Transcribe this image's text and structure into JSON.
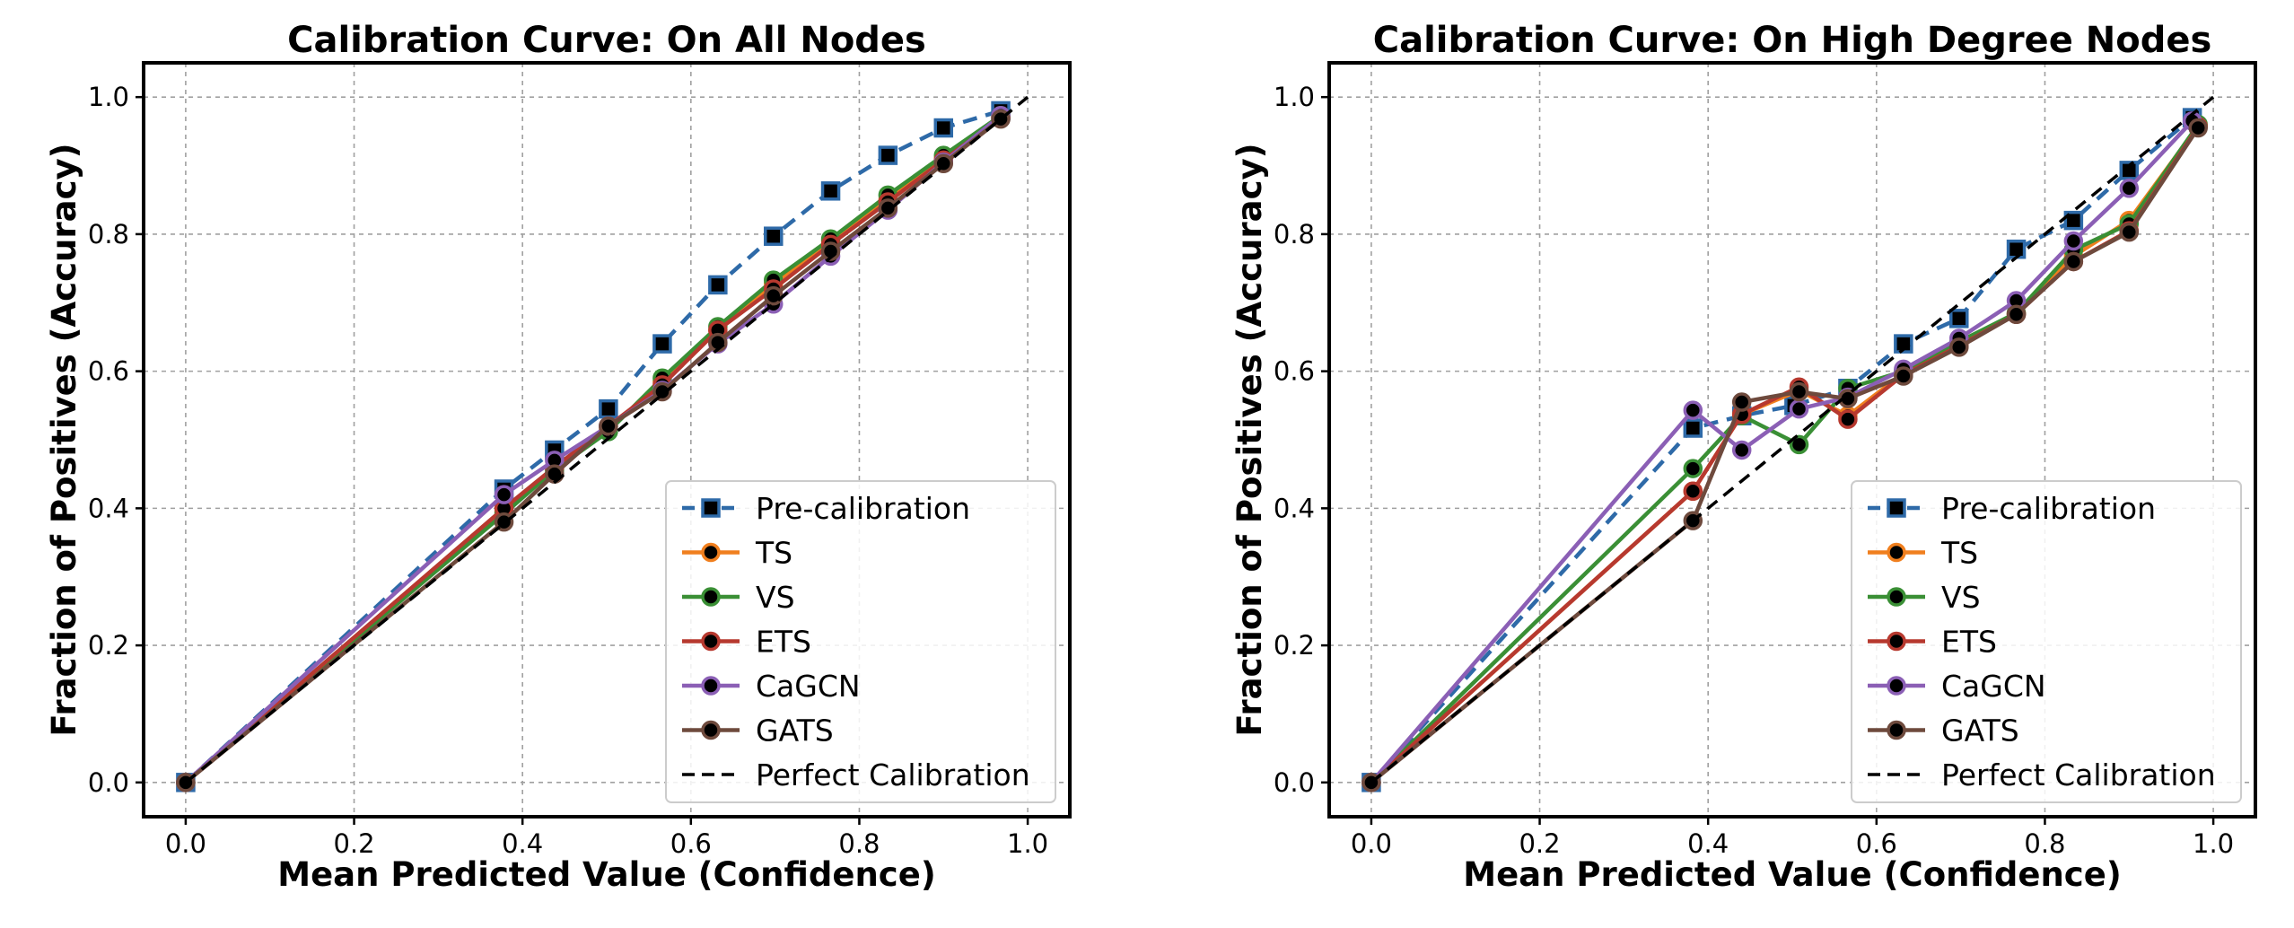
{
  "colors": {
    "Pre-calibration": "#2e6aa8",
    "TS": "#f07f1e",
    "VS": "#3a8f35",
    "ETS": "#b7392f",
    "CaGCN": "#8b5fb5",
    "GATS": "#6e4a3d",
    "Perfect Calibration": "#000000"
  },
  "chart_data": [
    {
      "type": "line",
      "title": "Calibration Curve: On All Nodes",
      "xlabel": "Mean Predicted Value (Confidence)",
      "ylabel": "Fraction of Positives (Accuracy)",
      "xlim": [
        -0.05,
        1.05
      ],
      "ylim": [
        -0.05,
        1.05
      ],
      "xticks": [
        "0.0",
        "0.2",
        "0.4",
        "0.6",
        "0.8",
        "1.0"
      ],
      "yticks": [
        "0.0",
        "0.2",
        "0.4",
        "0.6",
        "0.8",
        "1.0"
      ],
      "grid": true,
      "legend_position": "lower-right",
      "series": [
        {
          "name": "Pre-calibration",
          "marker": "square",
          "dashed": true,
          "x": [
            0.0,
            0.378,
            0.438,
            0.502,
            0.566,
            0.632,
            0.698,
            0.766,
            0.834,
            0.9,
            0.968
          ],
          "y": [
            0.0,
            0.428,
            0.485,
            0.545,
            0.64,
            0.726,
            0.797,
            0.863,
            0.915,
            0.955,
            0.98
          ]
        },
        {
          "name": "TS",
          "marker": "circle",
          "x": [
            0.0,
            0.378,
            0.438,
            0.502,
            0.566,
            0.632,
            0.698,
            0.766,
            0.834,
            0.9,
            0.968
          ],
          "y": [
            0.0,
            0.395,
            0.458,
            0.515,
            0.585,
            0.66,
            0.728,
            0.79,
            0.85,
            0.91,
            0.972
          ]
        },
        {
          "name": "VS",
          "marker": "circle",
          "x": [
            0.0,
            0.378,
            0.438,
            0.502,
            0.566,
            0.632,
            0.698,
            0.766,
            0.834,
            0.9,
            0.968
          ],
          "y": [
            0.0,
            0.392,
            0.456,
            0.512,
            0.59,
            0.665,
            0.733,
            0.793,
            0.857,
            0.915,
            0.973
          ]
        },
        {
          "name": "ETS",
          "marker": "circle",
          "x": [
            0.0,
            0.378,
            0.438,
            0.502,
            0.566,
            0.632,
            0.698,
            0.766,
            0.834,
            0.9,
            0.968
          ],
          "y": [
            0.0,
            0.4,
            0.46,
            0.52,
            0.58,
            0.66,
            0.72,
            0.785,
            0.847,
            0.908,
            0.97
          ]
        },
        {
          "name": "CaGCN",
          "marker": "circle",
          "x": [
            0.0,
            0.378,
            0.438,
            0.502,
            0.566,
            0.632,
            0.698,
            0.766,
            0.834,
            0.9,
            0.968
          ],
          "y": [
            0.0,
            0.42,
            0.47,
            0.52,
            0.572,
            0.64,
            0.698,
            0.768,
            0.835,
            0.905,
            0.973
          ]
        },
        {
          "name": "GATS",
          "marker": "circle",
          "x": [
            0.0,
            0.378,
            0.438,
            0.502,
            0.566,
            0.632,
            0.698,
            0.766,
            0.834,
            0.9,
            0.968
          ],
          "y": [
            0.0,
            0.38,
            0.45,
            0.52,
            0.57,
            0.642,
            0.71,
            0.775,
            0.838,
            0.903,
            0.968
          ]
        },
        {
          "name": "Perfect Calibration",
          "marker": "none",
          "dashed": true,
          "x": [
            0.0,
            1.0
          ],
          "y": [
            0.0,
            1.0
          ]
        }
      ]
    },
    {
      "type": "line",
      "title": "Calibration Curve: On High Degree Nodes",
      "xlabel": "Mean Predicted Value (Confidence)",
      "ylabel": "Fraction of Positives (Accuracy)",
      "xlim": [
        -0.05,
        1.05
      ],
      "ylim": [
        -0.05,
        1.05
      ],
      "xticks": [
        "0.0",
        "0.2",
        "0.4",
        "0.6",
        "0.8",
        "1.0"
      ],
      "yticks": [
        "0.0",
        "0.2",
        "0.4",
        "0.6",
        "0.8",
        "1.0"
      ],
      "grid": true,
      "legend_position": "lower-right",
      "series": [
        {
          "name": "Pre-calibration",
          "marker": "square",
          "dashed": true,
          "x": [
            0.0,
            0.382,
            0.44,
            0.502,
            0.566,
            0.632,
            0.698,
            0.766,
            0.834,
            0.9,
            0.975
          ],
          "y": [
            0.0,
            0.517,
            0.535,
            0.55,
            0.575,
            0.64,
            0.677,
            0.778,
            0.82,
            0.893,
            0.97
          ]
        },
        {
          "name": "TS",
          "marker": "circle",
          "x": [
            0.0,
            0.382,
            0.44,
            0.508,
            0.566,
            0.632,
            0.698,
            0.766,
            0.834,
            0.9,
            0.982
          ],
          "y": [
            0.0,
            0.425,
            0.537,
            0.572,
            0.535,
            0.597,
            0.64,
            0.684,
            0.768,
            0.82,
            0.958
          ]
        },
        {
          "name": "VS",
          "marker": "circle",
          "x": [
            0.0,
            0.382,
            0.44,
            0.508,
            0.566,
            0.632,
            0.698,
            0.766,
            0.834,
            0.9,
            0.982
          ],
          "y": [
            0.0,
            0.458,
            0.535,
            0.493,
            0.575,
            0.6,
            0.643,
            0.685,
            0.777,
            0.815,
            0.96
          ]
        },
        {
          "name": "ETS",
          "marker": "circle",
          "x": [
            0.0,
            0.382,
            0.44,
            0.508,
            0.566,
            0.632,
            0.698,
            0.766,
            0.834,
            0.9,
            0.982
          ],
          "y": [
            0.0,
            0.425,
            0.537,
            0.577,
            0.53,
            0.595,
            0.637,
            0.683,
            0.76,
            0.805,
            0.957
          ]
        },
        {
          "name": "CaGCN",
          "marker": "circle",
          "x": [
            0.0,
            0.382,
            0.44,
            0.508,
            0.566,
            0.632,
            0.698,
            0.766,
            0.834,
            0.9,
            0.975
          ],
          "y": [
            0.0,
            0.543,
            0.485,
            0.545,
            0.562,
            0.603,
            0.648,
            0.703,
            0.79,
            0.867,
            0.965
          ]
        },
        {
          "name": "GATS",
          "marker": "circle",
          "x": [
            0.0,
            0.382,
            0.44,
            0.508,
            0.566,
            0.632,
            0.698,
            0.766,
            0.834,
            0.9,
            0.982
          ],
          "y": [
            0.0,
            0.382,
            0.555,
            0.57,
            0.56,
            0.593,
            0.635,
            0.683,
            0.76,
            0.803,
            0.955
          ]
        },
        {
          "name": "Perfect Calibration",
          "marker": "none",
          "dashed": true,
          "x": [
            0.0,
            1.0
          ],
          "y": [
            0.0,
            1.0
          ]
        }
      ]
    }
  ]
}
